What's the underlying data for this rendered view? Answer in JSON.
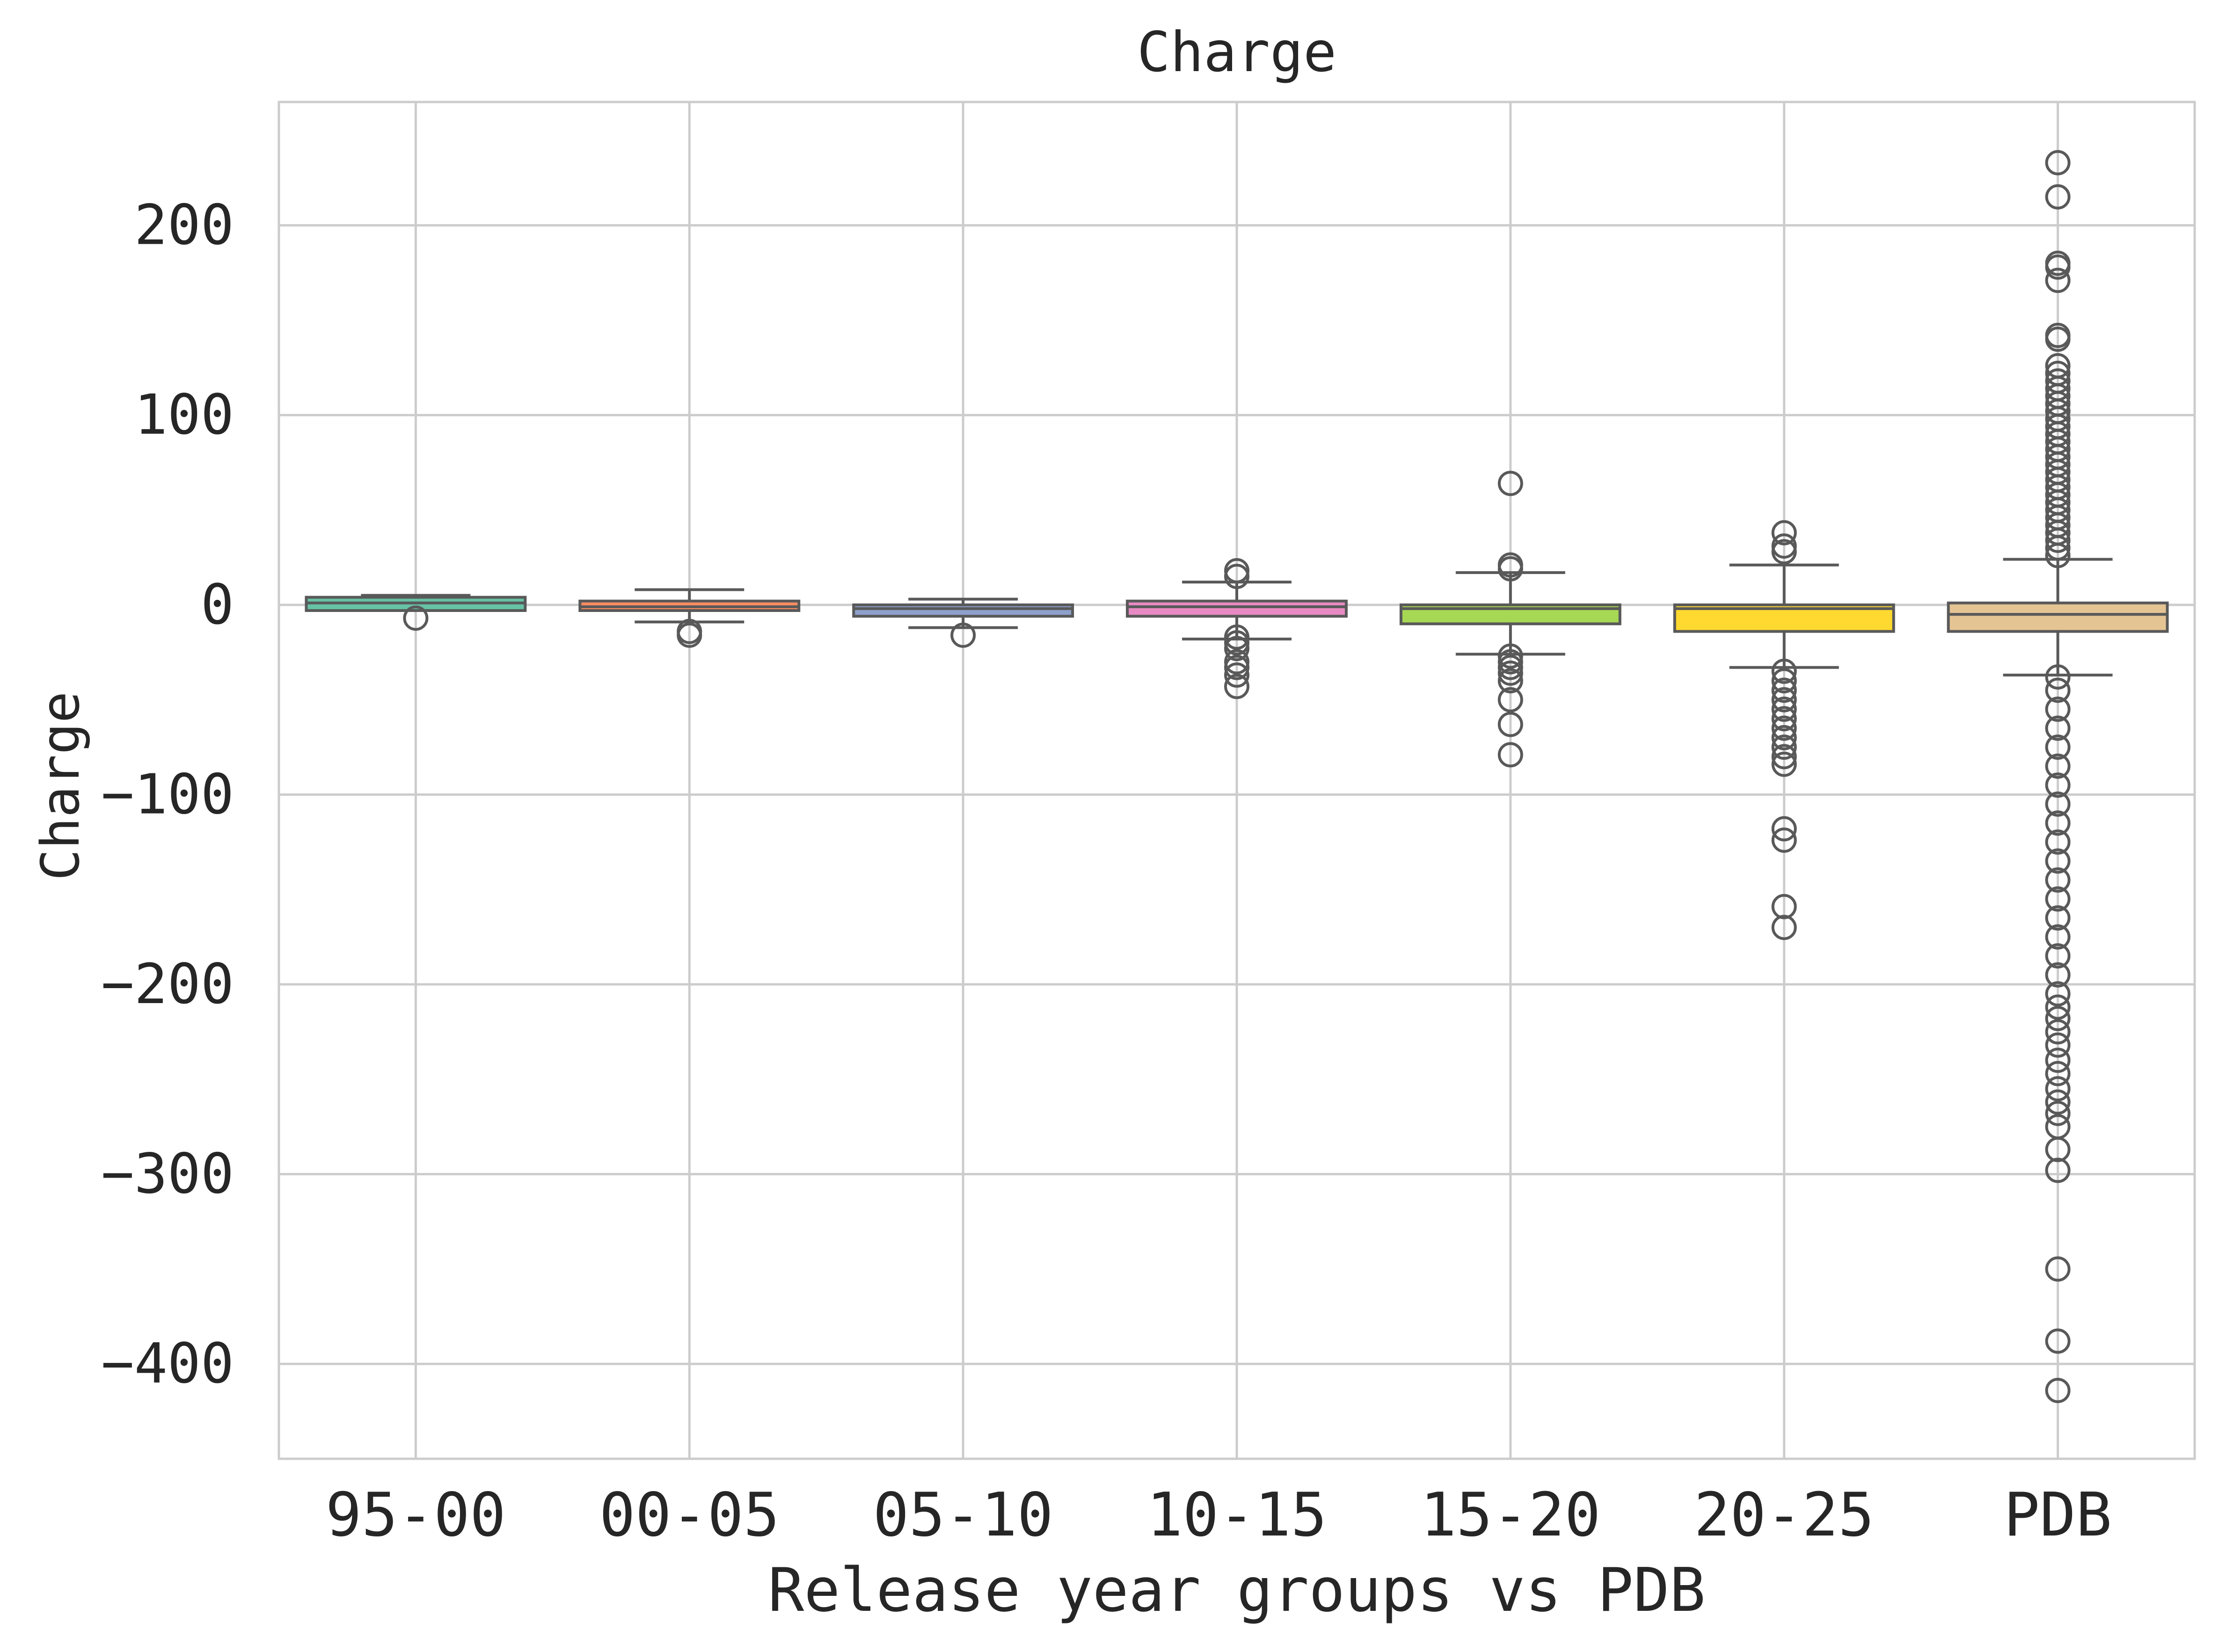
{
  "chart_data": {
    "type": "box",
    "title": "Charge",
    "xlabel": "Release year groups vs PDB",
    "ylabel": "Charge",
    "ylim": [
      -450,
      265
    ],
    "yticks": [
      200,
      100,
      0,
      -100,
      -200,
      -300,
      -400
    ],
    "ytick_labels": [
      "200",
      "100",
      "0",
      "−100",
      "−200",
      "−300",
      "−400"
    ],
    "grid": true,
    "categories": [
      "95-00",
      "00-05",
      "05-10",
      "10-15",
      "15-20",
      "20-25",
      "PDB"
    ],
    "boxes": [
      {
        "category": "95-00",
        "color": "#66c2a5",
        "whisker_low": -3,
        "q1": -3,
        "median": 1,
        "q3": 4,
        "whisker_high": 5,
        "outliers": [
          -7
        ]
      },
      {
        "category": "00-05",
        "color": "#fc8d62",
        "whisker_low": -9,
        "q1": -3,
        "median": -1,
        "q3": 2,
        "whisker_high": 8,
        "outliers": [
          -14,
          -16
        ]
      },
      {
        "category": "05-10",
        "color": "#8da0cb",
        "whisker_low": -12,
        "q1": -6,
        "median": -2,
        "q3": 0,
        "whisker_high": 3,
        "outliers": [
          -16
        ]
      },
      {
        "category": "10-15",
        "color": "#e78ac3",
        "whisker_low": -18,
        "q1": -6,
        "median": -1,
        "q3": 2,
        "whisker_high": 12,
        "outliers": [
          15,
          18,
          -17,
          -20,
          -23,
          -30,
          -33,
          -37,
          -43
        ]
      },
      {
        "category": "15-20",
        "color": "#a6d854",
        "whisker_low": -26,
        "q1": -10,
        "median": -2,
        "q3": 0,
        "whisker_high": 17,
        "outliers": [
          64,
          21,
          19,
          -27,
          -30,
          -33,
          -36,
          -40,
          -50,
          -63,
          -79
        ]
      },
      {
        "category": "20-25",
        "color": "#ffd92f",
        "whisker_low": -33,
        "q1": -14,
        "median": -2,
        "q3": 0,
        "whisker_high": 21,
        "outliers": [
          38,
          31,
          28,
          -35,
          -40,
          -45,
          -50,
          -55,
          -60,
          -65,
          -70,
          -75,
          -80,
          -84,
          -118,
          -124,
          -159,
          -170
        ]
      },
      {
        "category": "PDB",
        "color": "#e5c494",
        "whisker_low": -37,
        "q1": -14,
        "median": -5,
        "q3": 1,
        "whisker_high": 24,
        "outliers": [
          233,
          215,
          180,
          178,
          171,
          142,
          140,
          126,
          122,
          118,
          114,
          110,
          106,
          102,
          98,
          94,
          90,
          86,
          82,
          78,
          74,
          70,
          66,
          62,
          58,
          54,
          50,
          46,
          42,
          38,
          34,
          30,
          26,
          -38,
          -45,
          -55,
          -65,
          -75,
          -85,
          -95,
          -105,
          -115,
          -125,
          -135,
          -145,
          -155,
          -165,
          -175,
          -185,
          -195,
          -205,
          -212,
          -218,
          -225,
          -232,
          -240,
          -247,
          -255,
          -262,
          -268,
          -275,
          -287,
          -298,
          -350,
          -388,
          -414
        ]
      }
    ]
  }
}
